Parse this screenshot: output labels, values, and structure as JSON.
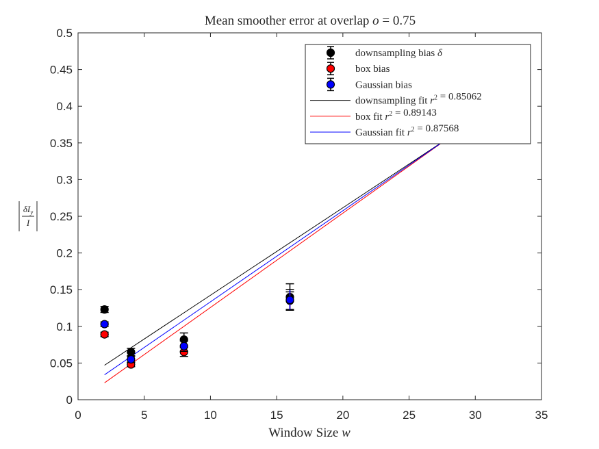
{
  "chart_data": {
    "type": "scatter",
    "title": "Mean smoother error at overlap o = 0.75",
    "xlabel": "Window Size w",
    "ylabel": "|δI_y / I|",
    "xlim": [
      0,
      35
    ],
    "ylim": [
      0,
      0.5
    ],
    "x_ticks": [
      "0",
      "5",
      "10",
      "15",
      "20",
      "25",
      "30",
      "35"
    ],
    "y_ticks": [
      "0",
      "0.05",
      "0.1",
      "0.15",
      "0.2",
      "0.25",
      "0.3",
      "0.35",
      "0.4",
      "0.45",
      "0.5"
    ],
    "grid": false,
    "legend_position": "top-right",
    "series": [
      {
        "name": "downsampling bias δ",
        "kind": "errorbar",
        "color": "#000000",
        "x": [
          2,
          4,
          8,
          16
        ],
        "y": [
          0.123,
          0.065,
          0.082,
          0.14
        ],
        "err": [
          0.004,
          0.005,
          0.009,
          0.018
        ]
      },
      {
        "name": "box bias",
        "kind": "errorbar",
        "color": "#ff0000",
        "x": [
          2,
          4,
          8,
          16
        ],
        "y": [
          0.089,
          0.048,
          0.065,
          0.135
        ],
        "err": [
          0.003,
          0.003,
          0.006,
          0.012
        ]
      },
      {
        "name": "Gaussian bias",
        "kind": "errorbar",
        "color": "#0000ff",
        "x": [
          2,
          4,
          8,
          16
        ],
        "y": [
          0.103,
          0.055,
          0.073,
          0.136
        ],
        "err": [
          0.003,
          0.004,
          0.007,
          0.014
        ]
      },
      {
        "name": "downsampling fit r^2 = 0.85062",
        "kind": "line",
        "color": "#000000",
        "x": [
          2,
          28
        ],
        "y": [
          0.047,
          0.357
        ]
      },
      {
        "name": "box fit r^2 = 0.89143",
        "kind": "line",
        "color": "#ff0000",
        "x": [
          2,
          28
        ],
        "y": [
          0.023,
          0.357
        ]
      },
      {
        "name": "Gaussian fit r^2 = 0.87568",
        "kind": "line",
        "color": "#0000ff",
        "x": [
          2,
          28
        ],
        "y": [
          0.034,
          0.357
        ]
      }
    ]
  }
}
